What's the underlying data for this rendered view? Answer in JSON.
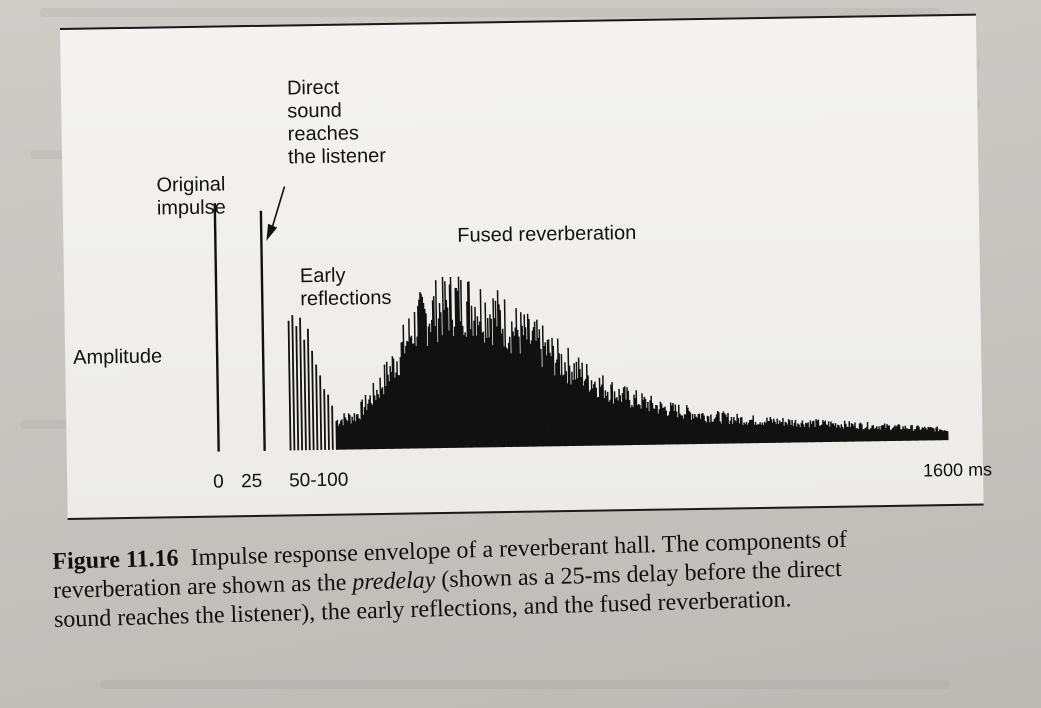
{
  "chart_data": {
    "type": "bar",
    "xlabel": "",
    "ylabel": "Amplitude",
    "x_tick_labels": [
      "0",
      "25",
      "50-100",
      "1600 ms"
    ],
    "annotations": {
      "original_impulse": "Original impulse",
      "direct_sound": "Direct sound reaches the listener",
      "early_reflections": "Early reflections",
      "fused_reverberation": "Fused reverberation"
    },
    "xlim": [
      0,
      1600
    ],
    "ylim": [
      0,
      1
    ],
    "spikes": [
      {
        "x": 0,
        "amplitude": 0.9
      },
      {
        "x": 25,
        "amplitude": 0.87
      }
    ],
    "early_reflections": [
      {
        "x": 52,
        "amplitude": 0.47
      },
      {
        "x": 56,
        "amplitude": 0.49
      },
      {
        "x": 60,
        "amplitude": 0.45
      },
      {
        "x": 64,
        "amplitude": 0.48
      },
      {
        "x": 68,
        "amplitude": 0.4
      },
      {
        "x": 72,
        "amplitude": 0.44
      },
      {
        "x": 76,
        "amplitude": 0.36
      },
      {
        "x": 80,
        "amplitude": 0.31
      },
      {
        "x": 84,
        "amplitude": 0.27
      },
      {
        "x": 88,
        "amplitude": 0.22
      },
      {
        "x": 92,
        "amplitude": 0.2
      },
      {
        "x": 96,
        "amplitude": 0.16
      }
    ],
    "envelope": [
      {
        "x": 100,
        "amplitude": 0.11
      },
      {
        "x": 150,
        "amplitude": 0.13
      },
      {
        "x": 200,
        "amplitude": 0.22
      },
      {
        "x": 250,
        "amplitude": 0.34
      },
      {
        "x": 300,
        "amplitude": 0.48
      },
      {
        "x": 350,
        "amplitude": 0.53
      },
      {
        "x": 400,
        "amplitude": 0.56
      },
      {
        "x": 450,
        "amplitude": 0.54
      },
      {
        "x": 500,
        "amplitude": 0.5
      },
      {
        "x": 550,
        "amplitude": 0.44
      },
      {
        "x": 600,
        "amplitude": 0.39
      },
      {
        "x": 650,
        "amplitude": 0.33
      },
      {
        "x": 700,
        "amplitude": 0.28
      },
      {
        "x": 750,
        "amplitude": 0.23
      },
      {
        "x": 800,
        "amplitude": 0.19
      },
      {
        "x": 900,
        "amplitude": 0.14
      },
      {
        "x": 1000,
        "amplitude": 0.11
      },
      {
        "x": 1100,
        "amplitude": 0.09
      },
      {
        "x": 1200,
        "amplitude": 0.08
      },
      {
        "x": 1300,
        "amplitude": 0.07
      },
      {
        "x": 1400,
        "amplitude": 0.06
      },
      {
        "x": 1500,
        "amplitude": 0.05
      },
      {
        "x": 1600,
        "amplitude": 0.04
      }
    ]
  },
  "caption": {
    "figure_label": "Figure 11.16",
    "line1_text": "Impulse response envelope of a reverberant hall. The components of",
    "line2_pre": "reverberation are shown as the",
    "line2_em": "predelay",
    "line2_post": "(shown as a 25-ms delay before the direct",
    "line3_text": "sound reaches the listener), the early reflections, and the fused reverberation."
  }
}
